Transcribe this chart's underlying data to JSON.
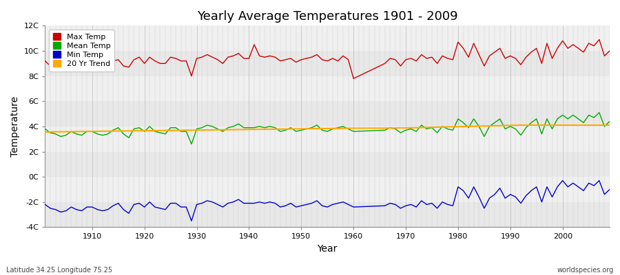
{
  "title": "Yearly Average Temperatures 1901 - 2009",
  "xlabel": "Year",
  "ylabel": "Temperature",
  "footer_left": "Latitude 34.25 Longitude 75.25",
  "footer_right": "worldspecies.org",
  "ylim": [
    -4,
    12
  ],
  "yticks": [
    -4,
    -2,
    0,
    2,
    4,
    6,
    8,
    10,
    12
  ],
  "ytick_labels": [
    "-4C",
    "-2C",
    "0C",
    "2C",
    "4C",
    "6C",
    "8C",
    "10C",
    "12C"
  ],
  "xlim": [
    1901,
    2009
  ],
  "xticks": [
    1910,
    1920,
    1930,
    1940,
    1950,
    1960,
    1970,
    1980,
    1990,
    2000
  ],
  "legend_entries": [
    "Max Temp",
    "Mean Temp",
    "Min Temp",
    "20 Yr Trend"
  ],
  "legend_colors": [
    "#cc0000",
    "#00aa00",
    "#0000cc",
    "#ffaa00"
  ],
  "bg_color": "#ffffff",
  "plot_bg_color": "#ffffff",
  "band_colors": [
    "#e8e8e8",
    "#f5f5f5"
  ],
  "grid_color": "#cccccc",
  "max_temp_color": "#cc0000",
  "mean_temp_color": "#00aa00",
  "min_temp_color": "#0000cc",
  "trend_color": "#ffaa00",
  "years": [
    1901,
    1902,
    1903,
    1904,
    1905,
    1906,
    1907,
    1908,
    1909,
    1910,
    1911,
    1912,
    1913,
    1914,
    1915,
    1916,
    1917,
    1918,
    1919,
    1920,
    1921,
    1922,
    1923,
    1924,
    1925,
    1926,
    1927,
    1928,
    1929,
    1930,
    1931,
    1932,
    1933,
    1934,
    1935,
    1936,
    1937,
    1938,
    1939,
    1940,
    1941,
    1942,
    1943,
    1944,
    1945,
    1946,
    1947,
    1948,
    1949,
    1950,
    1951,
    1952,
    1953,
    1954,
    1955,
    1956,
    1957,
    1958,
    1959,
    1960,
    1966,
    1967,
    1968,
    1969,
    1970,
    1971,
    1972,
    1973,
    1974,
    1975,
    1976,
    1977,
    1978,
    1979,
    1980,
    1981,
    1982,
    1983,
    1984,
    1985,
    1986,
    1987,
    1988,
    1989,
    1990,
    1991,
    1992,
    1993,
    1994,
    1995,
    1996,
    1997,
    1998,
    1999,
    2000,
    2001,
    2002,
    2003,
    2004,
    2005,
    2006,
    2007,
    2008,
    2009
  ],
  "max_temp": [
    9.2,
    8.8,
    8.7,
    8.7,
    8.8,
    9.0,
    8.8,
    8.7,
    9.2,
    9.0,
    9.0,
    8.8,
    9.0,
    9.2,
    9.3,
    8.8,
    8.7,
    9.3,
    9.5,
    9.0,
    9.5,
    9.2,
    9.0,
    9.0,
    9.5,
    9.4,
    9.2,
    9.2,
    8.0,
    9.4,
    9.5,
    9.7,
    9.5,
    9.3,
    9.0,
    9.5,
    9.6,
    9.8,
    9.4,
    9.4,
    10.5,
    9.6,
    9.5,
    9.6,
    9.5,
    9.2,
    9.3,
    9.4,
    9.1,
    9.3,
    9.4,
    9.5,
    9.7,
    9.3,
    9.2,
    9.4,
    9.2,
    9.6,
    9.3,
    7.8,
    9.0,
    9.4,
    9.3,
    8.8,
    9.3,
    9.4,
    9.2,
    9.7,
    9.4,
    9.5,
    9.0,
    9.6,
    9.4,
    9.3,
    10.7,
    10.2,
    9.5,
    10.6,
    9.7,
    8.8,
    9.6,
    9.9,
    10.2,
    9.4,
    9.6,
    9.4,
    8.9,
    9.5,
    9.9,
    10.2,
    9.0,
    10.6,
    9.4,
    10.2,
    10.8,
    10.2,
    10.5,
    10.2,
    9.9,
    10.6,
    10.4,
    10.9,
    9.6,
    10.0
  ],
  "mean_temp": [
    3.8,
    3.5,
    3.4,
    3.2,
    3.3,
    3.6,
    3.4,
    3.3,
    3.6,
    3.6,
    3.4,
    3.3,
    3.4,
    3.7,
    3.9,
    3.4,
    3.1,
    3.8,
    3.9,
    3.6,
    4.0,
    3.6,
    3.5,
    3.4,
    3.9,
    3.9,
    3.6,
    3.6,
    2.6,
    3.8,
    3.9,
    4.1,
    4.0,
    3.8,
    3.6,
    3.9,
    4.0,
    4.2,
    3.9,
    3.9,
    3.9,
    4.0,
    3.9,
    4.0,
    3.9,
    3.6,
    3.7,
    3.9,
    3.6,
    3.7,
    3.8,
    3.9,
    4.1,
    3.7,
    3.6,
    3.8,
    3.9,
    4.0,
    3.8,
    3.6,
    3.7,
    3.9,
    3.8,
    3.5,
    3.7,
    3.8,
    3.6,
    4.1,
    3.8,
    3.9,
    3.5,
    4.0,
    3.8,
    3.7,
    4.6,
    4.3,
    3.9,
    4.6,
    4.0,
    3.2,
    4.0,
    4.3,
    4.6,
    3.8,
    4.0,
    3.8,
    3.3,
    3.9,
    4.3,
    4.6,
    3.4,
    4.6,
    3.8,
    4.6,
    4.9,
    4.6,
    4.9,
    4.6,
    4.3,
    4.9,
    4.7,
    5.1,
    4.0,
    4.4
  ],
  "min_temp": [
    -2.2,
    -2.5,
    -2.6,
    -2.8,
    -2.7,
    -2.4,
    -2.6,
    -2.7,
    -2.4,
    -2.4,
    -2.6,
    -2.7,
    -2.6,
    -2.3,
    -2.1,
    -2.6,
    -2.9,
    -2.2,
    -2.1,
    -2.4,
    -2.0,
    -2.4,
    -2.5,
    -2.6,
    -2.1,
    -2.1,
    -2.4,
    -2.4,
    -3.5,
    -2.2,
    -2.1,
    -1.9,
    -2.0,
    -2.2,
    -2.4,
    -2.1,
    -2.0,
    -1.8,
    -2.1,
    -2.1,
    -2.1,
    -2.0,
    -2.1,
    -2.0,
    -2.1,
    -2.4,
    -2.3,
    -2.1,
    -2.4,
    -2.3,
    -2.2,
    -2.1,
    -1.9,
    -2.3,
    -2.4,
    -2.2,
    -2.1,
    -2.0,
    -2.2,
    -2.4,
    -2.3,
    -2.1,
    -2.2,
    -2.5,
    -2.3,
    -2.2,
    -2.4,
    -1.9,
    -2.2,
    -2.1,
    -2.5,
    -2.0,
    -2.2,
    -2.3,
    -0.8,
    -1.1,
    -1.7,
    -0.8,
    -1.6,
    -2.5,
    -1.7,
    -1.4,
    -0.9,
    -1.7,
    -1.4,
    -1.6,
    -2.1,
    -1.5,
    -1.1,
    -0.8,
    -2.0,
    -0.8,
    -1.6,
    -0.8,
    -0.3,
    -0.8,
    -0.5,
    -0.8,
    -1.1,
    -0.5,
    -0.7,
    -0.3,
    -1.4,
    -1.0
  ],
  "trend_years": [
    1901,
    1902,
    1903,
    1904,
    1905,
    1906,
    1907,
    1908,
    1909,
    1910,
    1911,
    1912,
    1913,
    1914,
    1915,
    1916,
    1917,
    1918,
    1919,
    1920,
    1921,
    1922,
    1923,
    1924,
    1925,
    1926,
    1927,
    1928,
    1929,
    1930,
    1931,
    1932,
    1933,
    1934,
    1935,
    1936,
    1937,
    1938,
    1939,
    1940,
    1941,
    1942,
    1943,
    1944,
    1945,
    1946,
    1947,
    1948,
    1949,
    1950,
    1951,
    1952,
    1953,
    1954,
    1955,
    1956,
    1957,
    1958,
    1959,
    1960,
    1966,
    1967,
    1968,
    1969,
    1970,
    1971,
    1972,
    1973,
    1974,
    1975,
    1976,
    1977,
    1978,
    1979,
    1980,
    1981,
    1982,
    1983,
    1984,
    1985,
    1986,
    1987,
    1988,
    1989,
    1990,
    1991,
    1992,
    1993,
    1994,
    1995,
    1996,
    1997,
    1998,
    1999,
    2000,
    2001,
    2002,
    2003,
    2004,
    2005,
    2006,
    2007,
    2008,
    2009
  ],
  "trend_mean": [
    3.55,
    3.56,
    3.57,
    3.57,
    3.58,
    3.58,
    3.59,
    3.6,
    3.6,
    3.61,
    3.61,
    3.62,
    3.62,
    3.63,
    3.63,
    3.64,
    3.64,
    3.65,
    3.65,
    3.66,
    3.66,
    3.67,
    3.67,
    3.68,
    3.68,
    3.69,
    3.69,
    3.7,
    3.7,
    3.71,
    3.71,
    3.72,
    3.72,
    3.73,
    3.73,
    3.74,
    3.74,
    3.75,
    3.75,
    3.76,
    3.76,
    3.77,
    3.77,
    3.78,
    3.78,
    3.79,
    3.79,
    3.8,
    3.8,
    3.81,
    3.81,
    3.82,
    3.82,
    3.83,
    3.83,
    3.84,
    3.84,
    3.85,
    3.85,
    3.86,
    3.86,
    3.87,
    3.87,
    3.88,
    3.88,
    3.89,
    3.9,
    3.91,
    3.92,
    3.93,
    3.94,
    3.95,
    3.96,
    3.97,
    3.98,
    3.99,
    4.0,
    4.01,
    4.02,
    4.03,
    4.04,
    4.05,
    4.06,
    4.07,
    4.08,
    4.09,
    4.1,
    4.1,
    4.1,
    4.1,
    4.1,
    4.1,
    4.1,
    4.1,
    4.1,
    4.1,
    4.1,
    4.1,
    4.1,
    4.1,
    4.1,
    4.1,
    4.1,
    4.1
  ]
}
